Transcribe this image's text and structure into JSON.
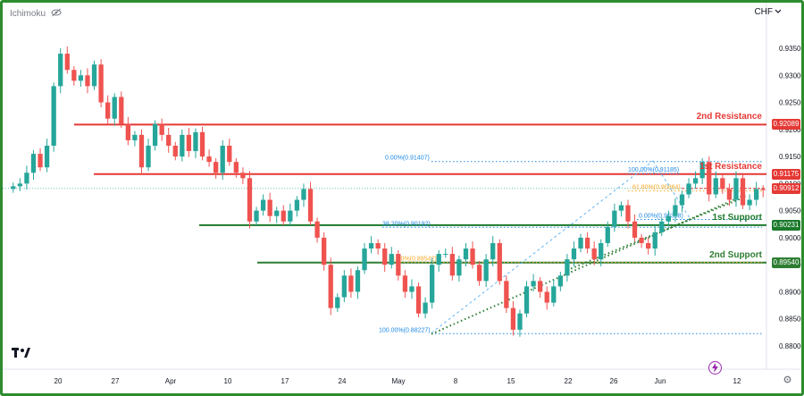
{
  "indicator": {
    "name": "Ichimoku",
    "icon": "eye-slash-icon"
  },
  "currency": {
    "label": "CHF",
    "icon": "chevron-down-icon"
  },
  "levels": [
    {
      "name": "2nd Resistance",
      "price": 0.92089,
      "price_label": "0.92089",
      "color": "#e53935"
    },
    {
      "name": "1st Resistance",
      "price": 0.91175,
      "price_label": "0.91175",
      "color": "#e53935"
    },
    {
      "name": "current",
      "price": 0.90912,
      "price_label": "0.90912",
      "color": "#e53935"
    },
    {
      "name": "1st Support",
      "price": 0.90231,
      "price_label": "0.90231",
      "color": "#1b7a2b"
    },
    {
      "name": "2nd Support",
      "price": 0.8954,
      "price_label": "0.89540",
      "color": "#2e7d32"
    }
  ],
  "fib_labels": [
    "0.00%(0.91407)",
    "100.00%(0.91185)",
    "61.80%(0.90864)",
    "0.00%(0.90338)",
    "38.20%(0.90192)",
    "61.80%(0.89542)",
    "100.00%(0.88227)"
  ],
  "chart_data": {
    "type": "candlestick",
    "symbol_indicator": "Ichimoku",
    "currency": "CHF",
    "y_ticks": [
      "0.93500",
      "0.93000",
      "0.92500",
      "0.92000",
      "0.91500",
      "0.91000",
      "0.90500",
      "0.90000",
      "0.89500",
      "0.89000",
      "0.88500",
      "0.88000"
    ],
    "x_ticks": [
      "20",
      "27",
      "Apr",
      "10",
      "17",
      "24",
      "May",
      "8",
      "15",
      "22",
      "26",
      "Jun",
      "12"
    ],
    "ylim": [
      0.8795,
      0.937
    ],
    "close": [
      0.9095,
      0.91,
      0.912,
      0.9155,
      0.913,
      0.917,
      0.928,
      0.934,
      0.931,
      0.929,
      0.93,
      0.928,
      0.932,
      0.925,
      0.922,
      0.926,
      0.921,
      0.918,
      0.919,
      0.913,
      0.917,
      0.921,
      0.919,
      0.917,
      0.915,
      0.919,
      0.916,
      0.9195,
      0.915,
      0.914,
      0.912,
      0.917,
      0.914,
      0.912,
      0.911,
      0.903,
      0.905,
      0.907,
      0.904,
      0.905,
      0.903,
      0.905,
      0.907,
      0.909,
      0.903,
      0.9,
      0.895,
      0.887,
      0.889,
      0.893,
      0.89,
      0.894,
      0.898,
      0.899,
      0.898,
      0.895,
      0.897,
      0.893,
      0.89,
      0.891,
      0.886,
      0.888,
      0.895,
      0.897,
      0.897,
      0.893,
      0.896,
      0.898,
      0.895,
      0.892,
      0.896,
      0.899,
      0.892,
      0.887,
      0.883,
      0.886,
      0.891,
      0.892,
      0.89,
      0.888,
      0.891,
      0.893,
      0.896,
      0.898,
      0.9,
      0.898,
      0.896,
      0.899,
      0.902,
      0.905,
      0.906,
      0.903,
      0.9,
      0.899,
      0.898,
      0.901,
      0.903,
      0.904,
      0.906,
      0.908,
      0.91,
      0.911,
      0.914,
      0.908,
      0.911,
      0.909,
      0.907,
      0.911,
      0.906,
      0.907,
      0.909,
      0.9088
    ],
    "fib_levels": [
      {
        "label": "0.00%(0.91407)",
        "price": 0.91407
      },
      {
        "label": "100.00%(0.91185)",
        "price": 0.91185
      },
      {
        "label": "61.80%(0.90864)",
        "price": 0.90864
      },
      {
        "label": "0.00%(0.90338)",
        "price": 0.90338
      },
      {
        "label": "38.20%(0.90192)",
        "price": 0.90192
      },
      {
        "label": "61.80%(0.89542)",
        "price": 0.89542
      },
      {
        "label": "100.00%(0.88227)",
        "price": 0.88227
      }
    ],
    "trendline_points": [
      [
        0.8824,
        0.9056
      ]
    ],
    "grid": false,
    "legend": "none"
  }
}
